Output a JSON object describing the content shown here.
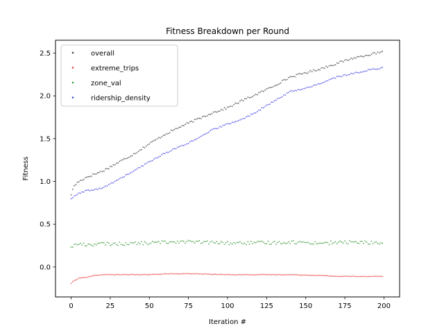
{
  "chart_data": {
    "type": "scatter",
    "title": "Fitness Breakdown per Round",
    "xlabel": "Iteration #",
    "ylabel": "Fitness",
    "xlim": [
      -10,
      210
    ],
    "ylim": [
      -0.35,
      2.65
    ],
    "xticks": [
      0,
      25,
      50,
      75,
      100,
      125,
      150,
      175,
      200
    ],
    "yticks": [
      0.0,
      0.5,
      1.0,
      1.5,
      2.0,
      2.5
    ],
    "ytick_labels": [
      "0.0",
      "0.5",
      "1.0",
      "1.5",
      "2.0",
      "2.5"
    ],
    "grid": false,
    "legend_position": "top-left",
    "x_range": [
      0,
      199
    ],
    "series": [
      {
        "name": "overall",
        "color": "#404040",
        "anchors_x": [
          0,
          2,
          5,
          10,
          20,
          30,
          40,
          50,
          60,
          70,
          80,
          90,
          100,
          110,
          120,
          130,
          140,
          150,
          160,
          170,
          180,
          190,
          199
        ],
        "anchors_y": [
          0.85,
          0.95,
          1.0,
          1.05,
          1.12,
          1.22,
          1.32,
          1.44,
          1.55,
          1.64,
          1.72,
          1.8,
          1.86,
          1.95,
          2.03,
          2.12,
          2.22,
          2.27,
          2.32,
          2.38,
          2.44,
          2.48,
          2.51
        ],
        "jitter": 0.012
      },
      {
        "name": "extreme_trips",
        "color": "#e8413c",
        "anchors_x": [
          0,
          2,
          5,
          10,
          15,
          20,
          30,
          50,
          60,
          80,
          100,
          120,
          140,
          160,
          170,
          180,
          199
        ],
        "anchors_y": [
          -0.19,
          -0.16,
          -0.13,
          -0.12,
          -0.1,
          -0.09,
          -0.09,
          -0.09,
          -0.08,
          -0.08,
          -0.09,
          -0.09,
          -0.09,
          -0.1,
          -0.11,
          -0.11,
          -0.11
        ],
        "jitter": 0.003
      },
      {
        "name": "zone_val",
        "color": "#3a9a3a",
        "anchors_x": [
          0,
          5,
          10,
          20,
          30,
          50,
          60,
          70,
          80,
          100,
          120,
          140,
          160,
          180,
          199
        ],
        "anchors_y": [
          0.24,
          0.27,
          0.26,
          0.27,
          0.27,
          0.28,
          0.29,
          0.3,
          0.29,
          0.28,
          0.28,
          0.29,
          0.28,
          0.29,
          0.28
        ],
        "jitter": 0.02
      },
      {
        "name": "ridership_density",
        "color": "#4545e6",
        "anchors_x": [
          0,
          5,
          10,
          20,
          30,
          40,
          50,
          60,
          70,
          80,
          90,
          100,
          110,
          120,
          130,
          140,
          150,
          160,
          170,
          180,
          190,
          199
        ],
        "anchors_y": [
          0.8,
          0.86,
          0.89,
          0.92,
          1.02,
          1.12,
          1.23,
          1.33,
          1.41,
          1.49,
          1.6,
          1.67,
          1.73,
          1.83,
          1.94,
          2.05,
          2.09,
          2.15,
          2.22,
          2.26,
          2.3,
          2.33
        ],
        "jitter": 0.008
      }
    ]
  }
}
